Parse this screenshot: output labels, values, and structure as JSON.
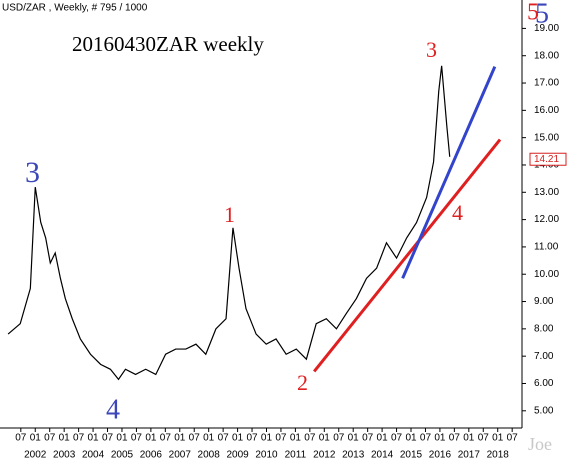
{
  "chart_data": {
    "type": "line",
    "title": "USD/ZAR , Weekly, # 795 / 1000",
    "subtitle": "20160430ZAR weekly",
    "watermark": "Joe",
    "series": [
      {
        "name": "USD/ZAR",
        "color": "#000000",
        "x": [
          2001.06,
          2001.48,
          2001.83,
          2002.0,
          2002.19,
          2002.36,
          2002.52,
          2002.69,
          2002.87,
          2003.04,
          2003.28,
          2003.56,
          2003.91,
          2004.26,
          2004.6,
          2004.88,
          2005.12,
          2005.47,
          2005.82,
          2006.17,
          2006.51,
          2006.86,
          2007.21,
          2007.56,
          2007.9,
          2008.25,
          2008.6,
          2008.84,
          2009.05,
          2009.29,
          2009.64,
          2009.99,
          2010.33,
          2010.68,
          2011.03,
          2011.38,
          2011.72,
          2012.07,
          2012.42,
          2012.76,
          2013.11,
          2013.46,
          2013.81,
          2014.15,
          2014.5,
          2014.85,
          2015.19,
          2015.54,
          2015.78,
          2015.96,
          2016.06,
          2016.24,
          2016.34
        ],
        "values": [
          7.81,
          8.19,
          9.48,
          13.19,
          11.9,
          11.33,
          10.41,
          10.78,
          9.85,
          9.11,
          8.37,
          7.63,
          7.07,
          6.7,
          6.52,
          6.15,
          6.52,
          6.33,
          6.52,
          6.33,
          7.07,
          7.26,
          7.26,
          7.44,
          7.07,
          8.0,
          8.37,
          11.7,
          10.22,
          8.74,
          7.81,
          7.44,
          7.63,
          7.07,
          7.26,
          6.89,
          8.19,
          8.37,
          8.0,
          8.56,
          9.11,
          9.85,
          10.22,
          11.15,
          10.59,
          11.33,
          11.89,
          12.81,
          14.11,
          16.7,
          17.63,
          15.41,
          14.3
        ]
      }
    ],
    "current_price": 14.21,
    "current_price_color": "#d62020",
    "trendlines": [
      {
        "color": "#e02020",
        "x": [
          2011.65,
          2018.08
        ],
        "y": [
          6.44,
          14.93
        ]
      },
      {
        "color": "#3344cc",
        "x": [
          2014.71,
          2017.9
        ],
        "y": [
          9.85,
          17.6
        ]
      }
    ],
    "annotations": [
      {
        "text": "3",
        "color": "#3b46b8"
      },
      {
        "text": "4",
        "color": "#3b46b8"
      },
      {
        "text": "1",
        "color": "#e02020"
      },
      {
        "text": "2",
        "color": "#e02020"
      },
      {
        "text": "3",
        "color": "#e02020"
      },
      {
        "text": "4",
        "color": "#e02020"
      },
      {
        "text": "5",
        "color": "#e02020"
      },
      {
        "text": "5",
        "color": "#3b46b8"
      }
    ],
    "xlim": [
      2000.78,
      2018.84
    ],
    "ylim": [
      4.37,
      20.04
    ],
    "yticks": [
      {
        "value": 5,
        "label": "5.00"
      },
      {
        "value": 6,
        "label": "6.00"
      },
      {
        "value": 7,
        "label": "7.00"
      },
      {
        "value": 8,
        "label": "8.00"
      },
      {
        "value": 9,
        "label": "9.00"
      },
      {
        "value": 10,
        "label": "10.00"
      },
      {
        "value": 11,
        "label": "11.00"
      },
      {
        "value": 12,
        "label": "12.00"
      },
      {
        "value": 13,
        "label": "13.00"
      },
      {
        "value": 14,
        "label": "14.00"
      },
      {
        "value": 15,
        "label": "15.00"
      },
      {
        "value": 16,
        "label": "16.00"
      },
      {
        "value": 17,
        "label": "17.00"
      },
      {
        "value": 18,
        "label": "18.00"
      },
      {
        "value": 19,
        "label": "19.00"
      }
    ],
    "xticks": [
      {
        "value": 2001.5,
        "label": "07"
      },
      {
        "value": 2002,
        "label": "01"
      },
      {
        "value": 2002.5,
        "label": "07"
      },
      {
        "value": 2003,
        "label": "01"
      },
      {
        "value": 2003.5,
        "label": "07"
      },
      {
        "value": 2004,
        "label": "01"
      },
      {
        "value": 2004.5,
        "label": "07"
      },
      {
        "value": 2005,
        "label": "01"
      },
      {
        "value": 2005.5,
        "label": "07"
      },
      {
        "value": 2006,
        "label": "01"
      },
      {
        "value": 2006.5,
        "label": "07"
      },
      {
        "value": 2007,
        "label": "01"
      },
      {
        "value": 2007.5,
        "label": "07"
      },
      {
        "value": 2008,
        "label": "01"
      },
      {
        "value": 2008.5,
        "label": "07"
      },
      {
        "value": 2009,
        "label": "01"
      },
      {
        "value": 2009.5,
        "label": "07"
      },
      {
        "value": 2010,
        "label": "01"
      },
      {
        "value": 2010.5,
        "label": "07"
      },
      {
        "value": 2011,
        "label": "01"
      },
      {
        "value": 2011.5,
        "label": "07"
      },
      {
        "value": 2012,
        "label": "01"
      },
      {
        "value": 2012.5,
        "label": "07"
      },
      {
        "value": 2013,
        "label": "01"
      },
      {
        "value": 2013.5,
        "label": "07"
      },
      {
        "value": 2014,
        "label": "01"
      },
      {
        "value": 2014.5,
        "label": "07"
      },
      {
        "value": 2015,
        "label": "01"
      },
      {
        "value": 2015.5,
        "label": "07"
      },
      {
        "value": 2016,
        "label": "01"
      },
      {
        "value": 2016.5,
        "label": "07"
      },
      {
        "value": 2017,
        "label": "01"
      },
      {
        "value": 2017.5,
        "label": "07"
      },
      {
        "value": 2018,
        "label": "01"
      },
      {
        "value": 2018.5,
        "label": "07"
      }
    ],
    "year_labels": [
      2002,
      2003,
      2004,
      2005,
      2006,
      2007,
      2008,
      2009,
      2010,
      2011,
      2012,
      2013,
      2014,
      2015,
      2016,
      2017,
      2018
    ]
  }
}
